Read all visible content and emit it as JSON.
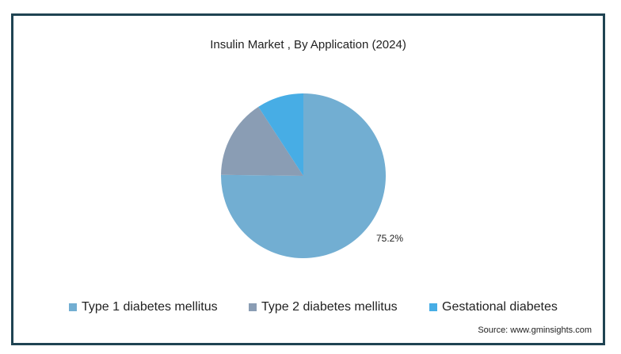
{
  "chart_data": {
    "type": "pie",
    "title": "Insulin Market , By Application (2024)",
    "slices": [
      {
        "label": "Type 1 diabetes mellitus",
        "value": 75.2,
        "color": "#72aed2",
        "data_label": "75.2%"
      },
      {
        "label": "Type 2 diabetes mellitus",
        "value": 15.6,
        "color": "#8a9db4",
        "data_label": ""
      },
      {
        "label": "Gestational diabetes",
        "value": 9.2,
        "color": "#47ade5",
        "data_label": ""
      }
    ],
    "legend_position": "bottom"
  },
  "source": "Source: www.gminsights.com"
}
